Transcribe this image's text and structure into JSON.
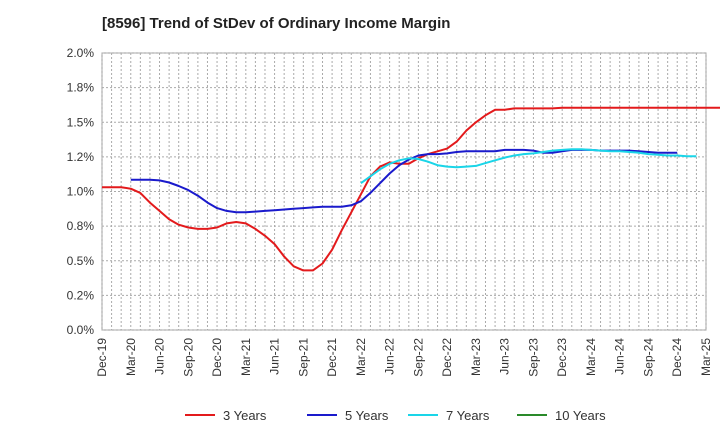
{
  "chart_data": {
    "type": "line",
    "title": "[8596]  Trend of StDev of Ordinary Income Margin",
    "xlabel": "",
    "ylabel": "",
    "ylim": [
      0,
      2.0
    ],
    "yticks": [
      {
        "v": 0.0,
        "label": "0.0%"
      },
      {
        "v": 0.25,
        "label": "0.2%"
      },
      {
        "v": 0.5,
        "label": "0.5%"
      },
      {
        "v": 0.75,
        "label": "0.8%"
      },
      {
        "v": 1.0,
        "label": "1.0%"
      },
      {
        "v": 1.25,
        "label": "1.2%"
      },
      {
        "v": 1.5,
        "label": "1.5%"
      },
      {
        "v": 1.75,
        "label": "1.8%"
      },
      {
        "v": 2.0,
        "label": "2.0%"
      }
    ],
    "xticks": [
      "Dec-19",
      "Mar-20",
      "Jun-20",
      "Sep-20",
      "Dec-20",
      "Mar-21",
      "Jun-21",
      "Sep-21",
      "Dec-21",
      "Mar-22",
      "Jun-22",
      "Sep-22",
      "Dec-22",
      "Mar-23",
      "Jun-23",
      "Sep-23",
      "Dec-23",
      "Mar-24",
      "Jun-24",
      "Sep-24",
      "Dec-24",
      "Mar-25"
    ],
    "grid": true,
    "legend_position": "bottom",
    "series": [
      {
        "name": "3 Years",
        "color": "#e31a1c",
        "start": 0,
        "values": [
          1.03,
          1.03,
          1.03,
          1.02,
          0.99,
          0.92,
          0.86,
          0.8,
          0.76,
          0.74,
          0.73,
          0.73,
          0.74,
          0.77,
          0.78,
          0.77,
          0.73,
          0.68,
          0.62,
          0.53,
          0.46,
          0.43,
          0.43,
          0.48,
          0.58,
          0.72,
          0.85,
          0.98,
          1.11,
          1.18,
          1.21,
          1.2,
          1.2,
          1.24,
          1.27,
          1.29,
          1.31,
          1.36,
          1.44,
          1.5,
          1.55,
          1.59,
          1.59,
          1.6,
          1.6,
          1.6,
          1.6,
          1.6,
          1.605,
          1.605,
          1.605,
          1.605,
          1.605,
          1.605,
          1.605,
          1.605,
          1.605,
          1.605,
          1.605,
          1.605,
          1.605,
          1.605,
          1.605,
          1.605,
          1.605,
          1.605,
          1.605,
          1.605,
          1.605,
          1.605
        ]
      },
      {
        "name": "5 Years",
        "color": "#1a1acc",
        "start": 0,
        "values": [
          null,
          null,
          null,
          null,
          null,
          null,
          null,
          null,
          null,
          null,
          null,
          null,
          null,
          null,
          null,
          null,
          null,
          null,
          null,
          null,
          null,
          null,
          null,
          null,
          null,
          null,
          null,
          null,
          null,
          null,
          null,
          null,
          null,
          null,
          null,
          null,
          null,
          null,
          null,
          null,
          null,
          null,
          null,
          null,
          null,
          null,
          null,
          null,
          null,
          null,
          null,
          null,
          null,
          null,
          null,
          null,
          null,
          null,
          null,
          null,
          null,
          null,
          null,
          null,
          null,
          null,
          null,
          null,
          null,
          null
        ]
      },
      {
        "name": "7 Years",
        "color": "#1ad5e8",
        "start": 0,
        "values": []
      },
      {
        "name": "10 Years",
        "color": "#2a8a2a",
        "start": 0,
        "values": []
      }
    ]
  }
}
